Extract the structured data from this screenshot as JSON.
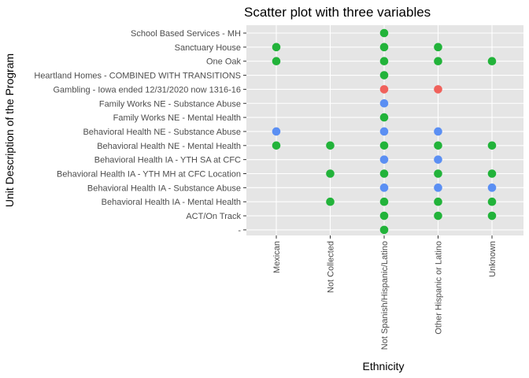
{
  "chart_data": {
    "type": "scatter",
    "title": "Scatter plot with three variables",
    "xlabel": "Ethnicity",
    "ylabel": "Unit Description of the Program",
    "grid": true,
    "legend": "none",
    "background": "#e5e5e5",
    "x_categories": [
      "Mexican",
      "Not Collected",
      "Not Spanish/Hispanic/Latino",
      "Other Hispanic or Latino",
      "Unknown"
    ],
    "y_categories": [
      "-",
      "ACT/On Track",
      "Behavioral Health IA -  Mental Health",
      "Behavioral Health IA - Substance Abuse",
      "Behavioral Health IA - YTH MH at CFC Location",
      "Behavioral Health IA - YTH SA at CFC",
      "Behavioral Health NE - Mental Health",
      "Behavioral Health NE - Substance Abuse",
      "Family Works NE - Mental Health",
      "Family Works NE - Substance Abuse",
      "Gambling - Iowa ended 12/31/2020 now 1316-16",
      "Heartland Homes - COMBINED WITH TRANSITIONS",
      "One Oak",
      "Sanctuary House",
      "School Based Services - MH"
    ],
    "color_map": {
      "green": "#22b33a",
      "blue": "#5b8ff3",
      "red": "#f0615b"
    },
    "points": [
      {
        "x": "Not Spanish/Hispanic/Latino",
        "y": "School Based Services - MH",
        "c": "green"
      },
      {
        "x": "Mexican",
        "y": "Sanctuary House",
        "c": "green"
      },
      {
        "x": "Not Spanish/Hispanic/Latino",
        "y": "Sanctuary House",
        "c": "green"
      },
      {
        "x": "Other Hispanic or Latino",
        "y": "Sanctuary House",
        "c": "green"
      },
      {
        "x": "Mexican",
        "y": "One Oak",
        "c": "green"
      },
      {
        "x": "Not Spanish/Hispanic/Latino",
        "y": "One Oak",
        "c": "green"
      },
      {
        "x": "Other Hispanic or Latino",
        "y": "One Oak",
        "c": "green"
      },
      {
        "x": "Unknown",
        "y": "One Oak",
        "c": "green"
      },
      {
        "x": "Not Spanish/Hispanic/Latino",
        "y": "Heartland Homes - COMBINED WITH TRANSITIONS",
        "c": "green"
      },
      {
        "x": "Not Spanish/Hispanic/Latino",
        "y": "Gambling - Iowa ended 12/31/2020 now 1316-16",
        "c": "red"
      },
      {
        "x": "Other Hispanic or Latino",
        "y": "Gambling - Iowa ended 12/31/2020 now 1316-16",
        "c": "red"
      },
      {
        "x": "Not Spanish/Hispanic/Latino",
        "y": "Family Works NE - Substance Abuse",
        "c": "blue"
      },
      {
        "x": "Not Spanish/Hispanic/Latino",
        "y": "Family Works NE - Mental Health",
        "c": "green"
      },
      {
        "x": "Mexican",
        "y": "Behavioral Health NE - Substance Abuse",
        "c": "blue"
      },
      {
        "x": "Not Spanish/Hispanic/Latino",
        "y": "Behavioral Health NE - Substance Abuse",
        "c": "blue"
      },
      {
        "x": "Other Hispanic or Latino",
        "y": "Behavioral Health NE - Substance Abuse",
        "c": "blue"
      },
      {
        "x": "Mexican",
        "y": "Behavioral Health NE - Mental Health",
        "c": "green"
      },
      {
        "x": "Not Collected",
        "y": "Behavioral Health NE - Mental Health",
        "c": "green"
      },
      {
        "x": "Not Spanish/Hispanic/Latino",
        "y": "Behavioral Health NE - Mental Health",
        "c": "green"
      },
      {
        "x": "Other Hispanic or Latino",
        "y": "Behavioral Health NE - Mental Health",
        "c": "green"
      },
      {
        "x": "Unknown",
        "y": "Behavioral Health NE - Mental Health",
        "c": "green"
      },
      {
        "x": "Not Spanish/Hispanic/Latino",
        "y": "Behavioral Health IA - YTH SA at CFC",
        "c": "blue"
      },
      {
        "x": "Other Hispanic or Latino",
        "y": "Behavioral Health IA - YTH SA at CFC",
        "c": "blue"
      },
      {
        "x": "Not Collected",
        "y": "Behavioral Health IA - YTH MH at CFC Location",
        "c": "green"
      },
      {
        "x": "Not Spanish/Hispanic/Latino",
        "y": "Behavioral Health IA - YTH MH at CFC Location",
        "c": "green"
      },
      {
        "x": "Other Hispanic or Latino",
        "y": "Behavioral Health IA - YTH MH at CFC Location",
        "c": "green"
      },
      {
        "x": "Unknown",
        "y": "Behavioral Health IA - YTH MH at CFC Location",
        "c": "green"
      },
      {
        "x": "Not Spanish/Hispanic/Latino",
        "y": "Behavioral Health IA - Substance Abuse",
        "c": "blue"
      },
      {
        "x": "Other Hispanic or Latino",
        "y": "Behavioral Health IA - Substance Abuse",
        "c": "blue"
      },
      {
        "x": "Unknown",
        "y": "Behavioral Health IA - Substance Abuse",
        "c": "blue"
      },
      {
        "x": "Not Collected",
        "y": "Behavioral Health IA -  Mental Health",
        "c": "green"
      },
      {
        "x": "Not Spanish/Hispanic/Latino",
        "y": "Behavioral Health IA -  Mental Health",
        "c": "green"
      },
      {
        "x": "Other Hispanic or Latino",
        "y": "Behavioral Health IA -  Mental Health",
        "c": "green"
      },
      {
        "x": "Unknown",
        "y": "Behavioral Health IA -  Mental Health",
        "c": "green"
      },
      {
        "x": "Not Spanish/Hispanic/Latino",
        "y": "ACT/On Track",
        "c": "green"
      },
      {
        "x": "Other Hispanic or Latino",
        "y": "ACT/On Track",
        "c": "green"
      },
      {
        "x": "Unknown",
        "y": "ACT/On Track",
        "c": "green"
      },
      {
        "x": "Not Spanish/Hispanic/Latino",
        "y": "-",
        "c": "green"
      }
    ]
  }
}
